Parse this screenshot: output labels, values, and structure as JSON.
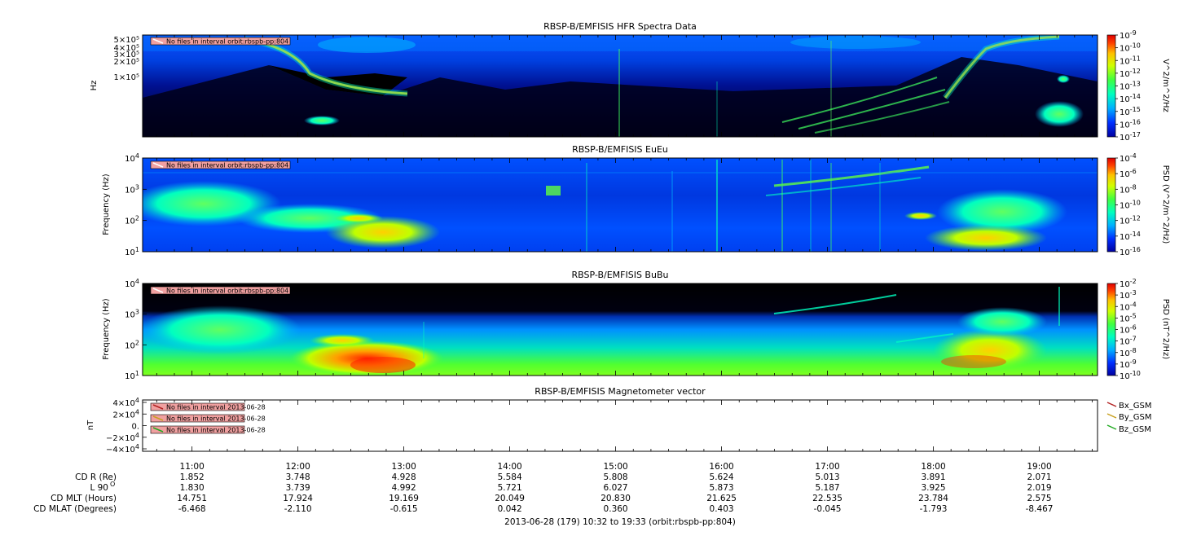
{
  "window_title": "",
  "panels": [
    {
      "title": "RBSP-B/EMFISIS  HFR Spectra Data",
      "ylabel": "Hz",
      "ytick_labels": [
        "5×10⁵",
        "4×10⁵",
        "3×10⁵",
        "2×10⁵",
        "1×10⁵"
      ],
      "warning": "No files in interval orbit:rbspb-pp:804",
      "colorbar_label": "V^2/m^2/Hz",
      "colorbar_ticks": [
        {
          "base": "10",
          "exp": "-9"
        },
        {
          "base": "10",
          "exp": "-10"
        },
        {
          "base": "10",
          "exp": "-11"
        },
        {
          "base": "10",
          "exp": "-12"
        },
        {
          "base": "10",
          "exp": "-13"
        },
        {
          "base": "10",
          "exp": "-14"
        },
        {
          "base": "10",
          "exp": "-15"
        },
        {
          "base": "10",
          "exp": "-16"
        },
        {
          "base": "10",
          "exp": "-17"
        }
      ],
      "y_scale": "log"
    },
    {
      "title": "RBSP-B/EMFISIS  EuEu",
      "ylabel": "Frequency (Hz)",
      "ytick_labels": [
        {
          "base": "10",
          "exp": "4"
        },
        {
          "base": "10",
          "exp": "3"
        },
        {
          "base": "10",
          "exp": "2"
        },
        {
          "base": "10",
          "exp": "1"
        }
      ],
      "warning": "No files in interval orbit:rbspb-pp:804",
      "colorbar_label": "PSD (V^2/m^2/Hz)",
      "colorbar_ticks": [
        {
          "base": "10",
          "exp": "-4"
        },
        {
          "base": "10",
          "exp": "-6"
        },
        {
          "base": "10",
          "exp": "-8"
        },
        {
          "base": "10",
          "exp": "-10"
        },
        {
          "base": "10",
          "exp": "-12"
        },
        {
          "base": "10",
          "exp": "-14"
        },
        {
          "base": "10",
          "exp": "-16"
        }
      ],
      "y_scale": "log"
    },
    {
      "title": "RBSP-B/EMFISIS  BuBu",
      "ylabel": "Frequency (Hz)",
      "ytick_labels": [
        {
          "base": "10",
          "exp": "4"
        },
        {
          "base": "10",
          "exp": "3"
        },
        {
          "base": "10",
          "exp": "2"
        },
        {
          "base": "10",
          "exp": "1"
        }
      ],
      "warning": "No files in interval orbit:rbspb-pp:804",
      "colorbar_label": "PSD (nT^2/Hz)",
      "colorbar_ticks": [
        {
          "base": "10",
          "exp": "-2"
        },
        {
          "base": "10",
          "exp": "-3"
        },
        {
          "base": "10",
          "exp": "-4"
        },
        {
          "base": "10",
          "exp": "-5"
        },
        {
          "base": "10",
          "exp": "-6"
        },
        {
          "base": "10",
          "exp": "-7"
        },
        {
          "base": "10",
          "exp": "-8"
        },
        {
          "base": "10",
          "exp": "-9"
        },
        {
          "base": "10",
          "exp": "-10"
        }
      ],
      "y_scale": "log"
    }
  ],
  "magnetometer": {
    "title": "RBSP-B/EMFISIS  Magnetometer vector",
    "ylabel": "nT",
    "ytick_labels": [
      {
        "base": "4×10",
        "exp": "4"
      },
      {
        "base": "2×10",
        "exp": "4"
      },
      {
        "base": "0.",
        "exp": ""
      },
      {
        "base": "−2×10",
        "exp": "4"
      },
      {
        "base": "−4×10",
        "exp": "4"
      }
    ],
    "warnings": [
      "No files in interval 2013-06-28",
      "No files in interval 2013-06-28",
      "No files in interval 2013-06-28"
    ],
    "legend": [
      {
        "name": "Bx_GSM",
        "color": "#b22222"
      },
      {
        "name": "By_GSM",
        "color": "#c8a020"
      },
      {
        "name": "Bz_GSM",
        "color": "#22aa22"
      }
    ]
  },
  "ephemeris": {
    "row_labels": [
      "CD R (Re)",
      "L 90",
      "CD MLT (Hours)",
      "CD MLAT (Degrees)"
    ],
    "l90_superscript": "O",
    "times": [
      "11:00",
      "12:00",
      "13:00",
      "14:00",
      "15:00",
      "16:00",
      "17:00",
      "18:00",
      "19:00"
    ],
    "rows": [
      [
        "1.852",
        "3.748",
        "4.928",
        "5.584",
        "5.808",
        "5.624",
        "5.013",
        "3.891",
        "2.071"
      ],
      [
        "1.830",
        "3.739",
        "4.992",
        "5.721",
        "6.027",
        "5.873",
        "5.187",
        "3.925",
        "2.019"
      ],
      [
        "14.751",
        "17.924",
        "19.169",
        "20.049",
        "20.830",
        "21.625",
        "22.535",
        "23.784",
        "2.575"
      ],
      [
        "-6.468",
        "-2.110",
        "-0.615",
        "0.042",
        "0.360",
        "0.403",
        "-0.045",
        "-1.793",
        "-8.467"
      ]
    ]
  },
  "footer": "2013-06-28 (179) 10:32 to 19:33 (orbit:rbspb-pp:804)",
  "chart_data": [
    {
      "type": "heatmap",
      "title": "RBSP-B/EMFISIS  HFR Spectra Data",
      "ylabel": "Hz",
      "y_scale": "log",
      "x_range": [
        "10:32",
        "19:33"
      ],
      "colorbar": {
        "label": "V^2/m^2/Hz",
        "min": "1e-17",
        "max": "1e-9",
        "scale": "log"
      }
    },
    {
      "type": "heatmap",
      "title": "RBSP-B/EMFISIS  EuEu",
      "ylabel": "Frequency (Hz)",
      "y_scale": "log",
      "ylim": [
        10,
        10000
      ],
      "x_range": [
        "10:32",
        "19:33"
      ],
      "colorbar": {
        "label": "PSD (V^2/m^2/Hz)",
        "min": "1e-16",
        "max": "1e-4",
        "scale": "log"
      }
    },
    {
      "type": "heatmap",
      "title": "RBSP-B/EMFISIS  BuBu",
      "ylabel": "Frequency (Hz)",
      "y_scale": "log",
      "ylim": [
        10,
        10000
      ],
      "x_range": [
        "10:32",
        "19:33"
      ],
      "colorbar": {
        "label": "PSD (nT^2/Hz)",
        "min": "1e-10",
        "max": "1e-2",
        "scale": "log"
      }
    },
    {
      "type": "line",
      "title": "RBSP-B/EMFISIS  Magnetometer vector",
      "ylabel": "nT",
      "ylim": [
        -40000,
        40000
      ],
      "series": [
        {
          "name": "Bx_GSM",
          "values": []
        },
        {
          "name": "By_GSM",
          "values": []
        },
        {
          "name": "Bz_GSM",
          "values": []
        }
      ]
    }
  ]
}
